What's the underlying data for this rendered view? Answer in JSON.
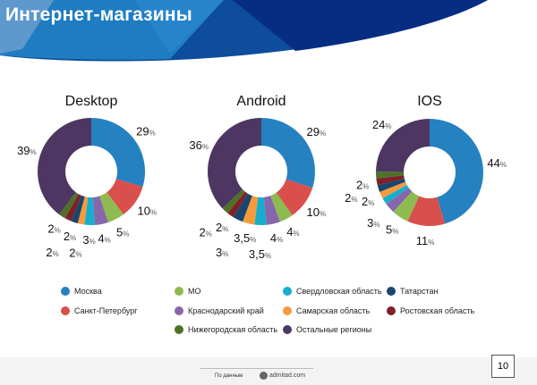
{
  "header": {
    "title": "Интернет-магазины"
  },
  "colors": {
    "Москва": "#2581c0",
    "Санкт-Петербург": "#d94f4c",
    "МО": "#8dbb4f",
    "Краснодарский край": "#8766ab",
    "Свердловская область": "#17aece",
    "Самарская область": "#f79a3c",
    "Татарстан": "#19466f",
    "Ростовская область": "#7d2227",
    "Нижегородская область": "#4f7028",
    "Остальные регионы": "#4e3663"
  },
  "chart_data": [
    {
      "type": "pie",
      "title": "Desktop",
      "donut": true,
      "categories": [
        "Москва",
        "Санкт-Петербург",
        "МО",
        "Краснодарский край",
        "Свердловская область",
        "Самарская область",
        "Татарстан",
        "Ростовская область",
        "Нижегородская область",
        "Остальные регионы"
      ],
      "values": [
        29,
        10,
        5,
        4,
        3,
        2,
        2,
        2,
        2,
        39
      ],
      "labels": [
        "29",
        "10",
        "5",
        "4",
        "3",
        "2",
        "2",
        "2",
        "2",
        "39"
      ]
    },
    {
      "type": "pie",
      "title": "Android",
      "donut": true,
      "categories": [
        "Москва",
        "Санкт-Петербург",
        "МО",
        "Краснодарский край",
        "Свердловская область",
        "Самарская область",
        "Татарстан",
        "Ростовская область",
        "Нижегородская область",
        "Остальные регионы"
      ],
      "values": [
        29,
        10,
        4,
        4,
        3.5,
        3.5,
        3,
        2,
        2,
        36
      ],
      "labels": [
        "29",
        "10",
        "4",
        "4",
        "3,5",
        "3,5",
        "3",
        "2",
        "2",
        "36"
      ]
    },
    {
      "type": "pie",
      "title": "IOS",
      "donut": true,
      "categories": [
        "Москва",
        "Санкт-Петербург",
        "МО",
        "Краснодарский край",
        "Свердловская область",
        "Самарская область",
        "Татарстан",
        "Ростовская область",
        "Нижегородская область",
        "Остальные регионы"
      ],
      "values": [
        44,
        11,
        5,
        3,
        2,
        2,
        2,
        2,
        2,
        24
      ],
      "labels": [
        "44",
        "11",
        "5",
        "3",
        null,
        "2",
        "2",
        "2",
        null,
        "24"
      ]
    }
  ],
  "percent_sign": "%",
  "legend": [
    {
      "label": "Москва",
      "color": "#2581c0"
    },
    {
      "label": "Санкт-Петербург",
      "color": "#d94f4c"
    },
    {
      "label": "МО",
      "color": "#8dbb4f"
    },
    {
      "label": "Краснодарский край",
      "color": "#8766ab"
    },
    {
      "label": "Нижегородская область",
      "color": "#4f7028"
    },
    {
      "label": "Свердловская область",
      "color": "#17aece"
    },
    {
      "label": "Самарская область",
      "color": "#f79a3c"
    },
    {
      "label": "Остальные регионы",
      "color": "#4e3663"
    },
    {
      "label": "Татарстан",
      "color": "#19466f"
    },
    {
      "label": "Ростовская область",
      "color": "#7d2227"
    }
  ],
  "footer": {
    "source_label": "По данным",
    "brand": "admitad.com",
    "page_number": "10"
  }
}
